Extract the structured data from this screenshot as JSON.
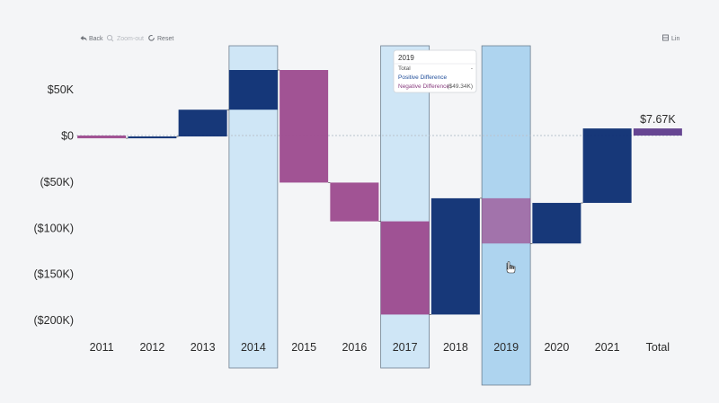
{
  "toolbar": {
    "back_label": "Back",
    "zoom_out_label": "Zoom-out",
    "reset_label": "Reset",
    "lin_label": "Lin"
  },
  "colors": {
    "positive": "#0b2d72",
    "negative": "#9c4a8e",
    "total": "#5e3b8c",
    "selection_band": "#cfe6f6",
    "hover_band": "#aed4ef",
    "zero_line": "#b9c2cc",
    "connector": "#2b2b2b"
  },
  "tooltip": {
    "title": "2019",
    "rows": [
      {
        "label": "Total",
        "value": "-"
      },
      {
        "label": "Positive Difference",
        "value": ""
      },
      {
        "label": "Negative Difference",
        "value": "($49.34K)"
      }
    ]
  },
  "chart_data": {
    "type": "waterfall",
    "title": "",
    "xlabel": "",
    "ylabel": "",
    "categories": [
      "2011",
      "2012",
      "2013",
      "2014",
      "2015",
      "2016",
      "2017",
      "2018",
      "2019",
      "2020",
      "2021",
      "Total"
    ],
    "steps": [
      {
        "category": "2011",
        "start": 0,
        "end": -3
      },
      {
        "category": "2012",
        "start": -3,
        "end": -1
      },
      {
        "category": "2013",
        "start": -1,
        "end": 28
      },
      {
        "category": "2014",
        "start": 28,
        "end": 71
      },
      {
        "category": "2015",
        "start": 71,
        "end": -51
      },
      {
        "category": "2016",
        "start": -51,
        "end": -93
      },
      {
        "category": "2017",
        "start": -93,
        "end": -194
      },
      {
        "category": "2018",
        "start": -194,
        "end": -68
      },
      {
        "category": "2019",
        "start": -68,
        "end": -117
      },
      {
        "category": "2020",
        "start": -117,
        "end": -73
      },
      {
        "category": "2021",
        "start": -73,
        "end": 7.67
      },
      {
        "category": "Total",
        "start": 0,
        "end": 7.67,
        "is_total": true
      }
    ],
    "unit": "$K",
    "y_ticks": [
      "$50K",
      "$0",
      "($50K)",
      "($100K)",
      "($150K)",
      "($200K)"
    ],
    "y_tick_values": [
      50,
      0,
      -50,
      -100,
      -150,
      -200
    ],
    "ylim": [
      -200,
      50
    ],
    "grid": false,
    "total_label": "$7.67K",
    "selected_categories": [
      "2014",
      "2017",
      "2019"
    ],
    "hovered_category": "2019"
  }
}
